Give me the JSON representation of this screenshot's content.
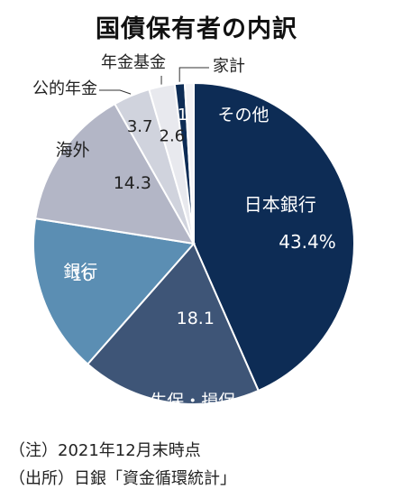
{
  "title": "国債保有者の内訳",
  "notes": {
    "note": "（注）2021年12月末時点",
    "source": "（出所）日銀「資金循環統計」"
  },
  "chart_data": {
    "type": "pie",
    "title": "国債保有者の内訳",
    "unit": "%",
    "slices": [
      {
        "label": "日本銀行",
        "value": 43.4,
        "display": "43.4%",
        "color": "#0d2c55",
        "text_color": "#ffffff"
      },
      {
        "label": "生保・損保",
        "value": 18.1,
        "display": "18.1",
        "color": "#3e5577",
        "text_color": "#ffffff"
      },
      {
        "label": "銀行",
        "value": 16,
        "display": "16",
        "color": "#5b8eb3",
        "text_color": "#ffffff"
      },
      {
        "label": "海外",
        "value": 14.3,
        "display": "14.3",
        "color": "#b3b6c6",
        "text_color": "#222222"
      },
      {
        "label": "公的年金",
        "value": 3.7,
        "display": "3.7",
        "color": "#d0d3dd",
        "text_color": "#222222"
      },
      {
        "label": "年金基金",
        "value": 2.6,
        "display": "2.6",
        "color": "#e8e9ee",
        "text_color": "#222222"
      },
      {
        "label": "家計",
        "value": 1,
        "display": "1",
        "color": "#0d2c55",
        "text_color": "#ffffff"
      },
      {
        "label": "その他",
        "value": 0.9,
        "display": "",
        "color": "#f3f3f6",
        "text_color": "#222222"
      }
    ]
  }
}
